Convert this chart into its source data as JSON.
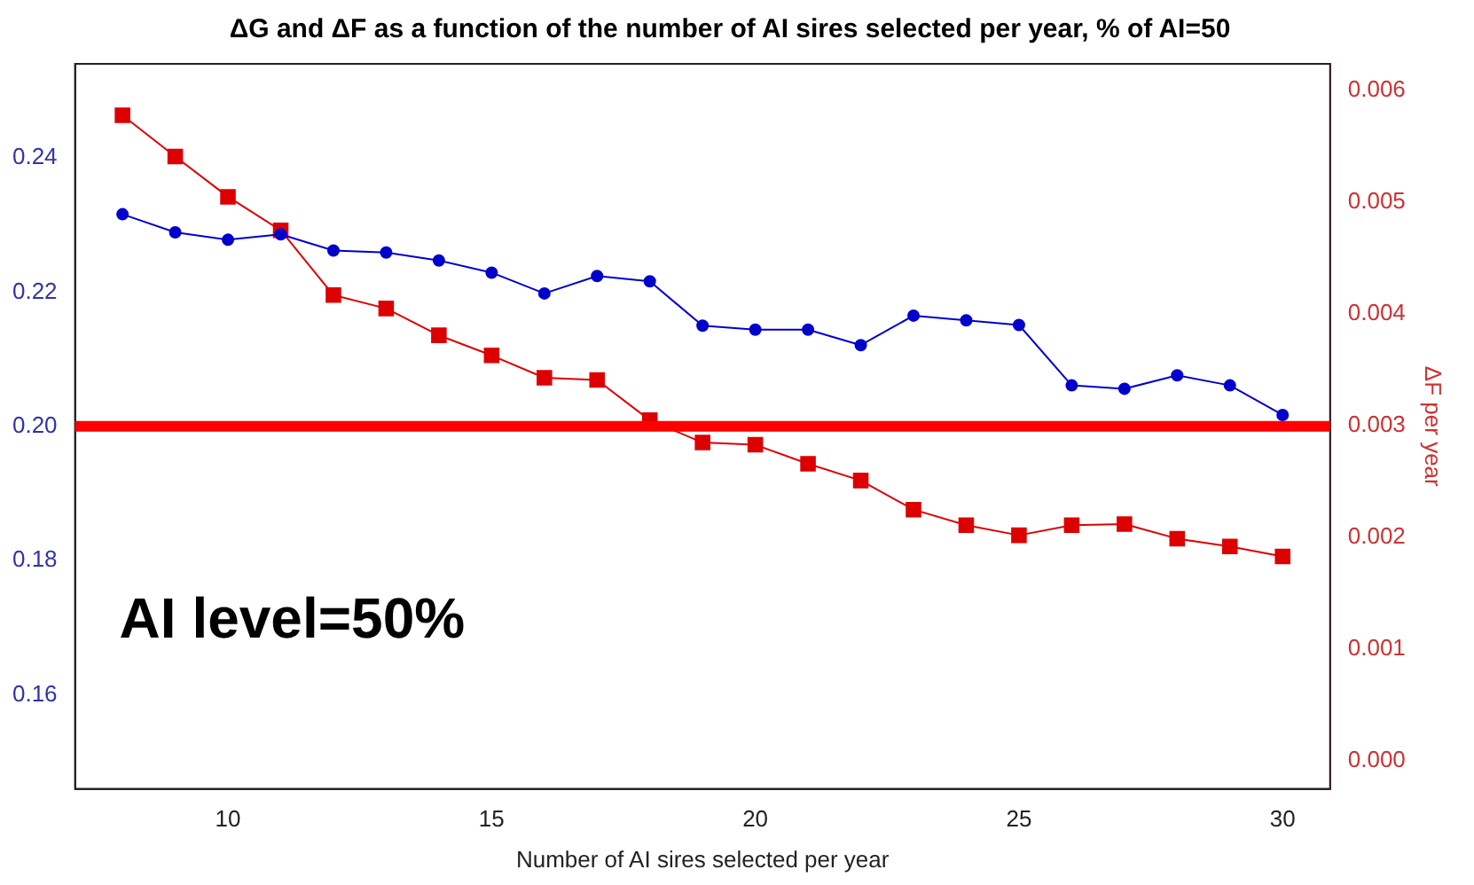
{
  "chart_data": {
    "type": "line",
    "title": "ΔG and ΔF as a function of the number of AI sires selected per year, % of AI=50",
    "xlabel": "Number of AI sires selected per year",
    "y2label": "ΔF per year",
    "x": [
      8,
      9,
      10,
      11,
      12,
      13,
      14,
      15,
      16,
      17,
      18,
      19,
      20,
      21,
      22,
      23,
      24,
      25,
      26,
      27,
      28,
      29,
      30
    ],
    "series": [
      {
        "color": "#0000cc",
        "marker": "circle",
        "values": [
          0.2316,
          0.2289,
          0.2278,
          0.2286,
          0.2262,
          0.2259,
          0.2247,
          0.2229,
          0.2198,
          0.2224,
          0.2216,
          0.215,
          0.2144,
          0.2144,
          0.2121,
          0.2165,
          0.2158,
          0.2151,
          0.2061,
          0.2056,
          0.2076,
          0.2061,
          0.2017
        ]
      },
      {
        "color": "#dd0000",
        "marker": "square",
        "axis": "y2",
        "values": [
          0.00578,
          0.00541,
          0.00505,
          0.00475,
          0.00417,
          0.00405,
          0.00381,
          0.00363,
          0.00343,
          0.00341,
          0.00305,
          0.00285,
          0.00283,
          0.00266,
          0.00251,
          0.00225,
          0.00211,
          0.00202,
          0.00211,
          0.00212,
          0.00199,
          0.00192,
          0.00183
        ]
      }
    ],
    "xlim": [
      7.1,
      30.9
    ],
    "xticks": [
      10,
      15,
      20,
      25,
      30
    ],
    "ylim": [
      0.146,
      0.254
    ],
    "yticks": [
      0.16,
      0.18,
      {
        "value": 0.2,
        "label": "0.20"
      },
      0.22,
      0.24
    ],
    "y2lim": [
      -0.00025,
      0.00624
    ],
    "y2ticks": [
      {
        "value": 0,
        "label": "0.000"
      },
      0.001,
      0.002,
      0.003,
      0.004,
      0.005,
      0.006
    ],
    "ref_lines": [
      {
        "axis": "y",
        "value": 0.2,
        "color": "#ff0000"
      }
    ],
    "annotations": [
      "AI level=50%"
    ],
    "grid": false,
    "legend": false
  }
}
